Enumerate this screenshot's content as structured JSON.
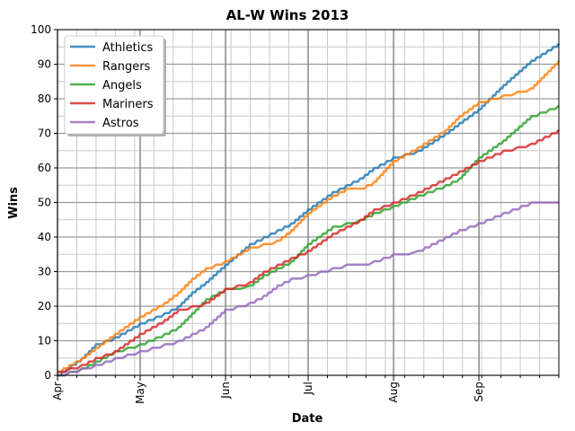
{
  "chart_data": {
    "type": "line",
    "title": "AL-W Wins 2013",
    "xlabel": "Date",
    "ylabel": "Wins",
    "xlim": [
      "2013-04-01",
      "2013-09-30"
    ],
    "ylim": [
      0,
      100
    ],
    "xticks": [
      "Apr",
      "May",
      "Jun",
      "Jul",
      "Aug",
      "Sep"
    ],
    "xtick_dates": [
      "2013-04-01",
      "2013-05-01",
      "2013-06-01",
      "2013-07-01",
      "2013-08-01",
      "2013-09-01"
    ],
    "yticks": [
      0,
      10,
      20,
      30,
      40,
      50,
      60,
      70,
      80,
      90,
      100
    ],
    "grid": true,
    "legend_position": "top-left",
    "series": [
      {
        "name": "Athletics",
        "color": "#1f77b4",
        "points": [
          [
            "2013-04-01",
            0
          ],
          [
            "2013-04-10",
            5
          ],
          [
            "2013-04-15",
            9
          ],
          [
            "2013-04-22",
            11
          ],
          [
            "2013-05-01",
            15
          ],
          [
            "2013-05-10",
            18
          ],
          [
            "2013-05-15",
            20
          ],
          [
            "2013-05-20",
            24
          ],
          [
            "2013-05-25",
            27
          ],
          [
            "2013-06-01",
            32
          ],
          [
            "2013-06-10",
            38
          ],
          [
            "2013-06-15",
            40
          ],
          [
            "2013-06-20",
            42
          ],
          [
            "2013-06-25",
            44
          ],
          [
            "2013-07-01",
            48
          ],
          [
            "2013-07-10",
            53
          ],
          [
            "2013-07-15",
            55
          ],
          [
            "2013-07-20",
            57
          ],
          [
            "2013-07-25",
            60
          ],
          [
            "2013-08-01",
            63
          ],
          [
            "2013-08-10",
            65
          ],
          [
            "2013-08-20",
            70
          ],
          [
            "2013-08-25",
            73
          ],
          [
            "2013-09-01",
            77
          ],
          [
            "2013-09-10",
            84
          ],
          [
            "2013-09-20",
            91
          ],
          [
            "2013-09-30",
            96
          ]
        ]
      },
      {
        "name": "Rangers",
        "color": "#ff7f0e",
        "points": [
          [
            "2013-04-01",
            1
          ],
          [
            "2013-04-10",
            5
          ],
          [
            "2013-04-15",
            8
          ],
          [
            "2013-04-22",
            12
          ],
          [
            "2013-05-01",
            17
          ],
          [
            "2013-05-10",
            21
          ],
          [
            "2013-05-15",
            24
          ],
          [
            "2013-05-20",
            28
          ],
          [
            "2013-05-25",
            31
          ],
          [
            "2013-06-01",
            33
          ],
          [
            "2013-06-10",
            37
          ],
          [
            "2013-06-15",
            38
          ],
          [
            "2013-06-20",
            39
          ],
          [
            "2013-06-25",
            42
          ],
          [
            "2013-07-01",
            47
          ],
          [
            "2013-07-10",
            52
          ],
          [
            "2013-07-15",
            54
          ],
          [
            "2013-07-20",
            54
          ],
          [
            "2013-07-25",
            56
          ],
          [
            "2013-08-01",
            62
          ],
          [
            "2013-08-10",
            66
          ],
          [
            "2013-08-20",
            71
          ],
          [
            "2013-08-25",
            75
          ],
          [
            "2013-09-01",
            79
          ],
          [
            "2013-09-10",
            81
          ],
          [
            "2013-09-20",
            83
          ],
          [
            "2013-09-30",
            91
          ]
        ]
      },
      {
        "name": "Angels",
        "color": "#2ca02c",
        "points": [
          [
            "2013-04-01",
            0
          ],
          [
            "2013-04-10",
            2
          ],
          [
            "2013-04-15",
            4
          ],
          [
            "2013-04-22",
            7
          ],
          [
            "2013-05-01",
            9
          ],
          [
            "2013-05-10",
            12
          ],
          [
            "2013-05-15",
            14
          ],
          [
            "2013-05-20",
            18
          ],
          [
            "2013-05-25",
            22
          ],
          [
            "2013-06-01",
            25
          ],
          [
            "2013-06-10",
            26
          ],
          [
            "2013-06-15",
            29
          ],
          [
            "2013-06-20",
            31
          ],
          [
            "2013-06-25",
            33
          ],
          [
            "2013-07-01",
            38
          ],
          [
            "2013-07-10",
            43
          ],
          [
            "2013-07-15",
            44
          ],
          [
            "2013-07-20",
            45
          ],
          [
            "2013-07-25",
            47
          ],
          [
            "2013-08-01",
            49
          ],
          [
            "2013-08-10",
            52
          ],
          [
            "2013-08-20",
            55
          ],
          [
            "2013-08-25",
            57
          ],
          [
            "2013-09-01",
            63
          ],
          [
            "2013-09-10",
            68
          ],
          [
            "2013-09-20",
            75
          ],
          [
            "2013-09-30",
            78
          ]
        ]
      },
      {
        "name": "Mariners",
        "color": "#d62728",
        "points": [
          [
            "2013-04-01",
            1
          ],
          [
            "2013-04-10",
            3
          ],
          [
            "2013-04-15",
            5
          ],
          [
            "2013-04-22",
            7
          ],
          [
            "2013-05-01",
            12
          ],
          [
            "2013-05-10",
            16
          ],
          [
            "2013-05-15",
            19
          ],
          [
            "2013-05-20",
            20
          ],
          [
            "2013-05-25",
            21
          ],
          [
            "2013-06-01",
            25
          ],
          [
            "2013-06-10",
            27
          ],
          [
            "2013-06-15",
            30
          ],
          [
            "2013-06-20",
            32
          ],
          [
            "2013-06-25",
            34
          ],
          [
            "2013-07-01",
            36
          ],
          [
            "2013-07-10",
            41
          ],
          [
            "2013-07-15",
            43
          ],
          [
            "2013-07-20",
            45
          ],
          [
            "2013-07-25",
            48
          ],
          [
            "2013-08-01",
            50
          ],
          [
            "2013-08-10",
            53
          ],
          [
            "2013-08-20",
            57
          ],
          [
            "2013-08-25",
            59
          ],
          [
            "2013-09-01",
            62
          ],
          [
            "2013-09-10",
            65
          ],
          [
            "2013-09-20",
            67
          ],
          [
            "2013-09-30",
            71
          ]
        ]
      },
      {
        "name": "Astros",
        "color": "#9467bd",
        "points": [
          [
            "2013-04-01",
            0
          ],
          [
            "2013-04-10",
            2
          ],
          [
            "2013-04-15",
            3
          ],
          [
            "2013-04-22",
            5
          ],
          [
            "2013-05-01",
            7
          ],
          [
            "2013-05-10",
            9
          ],
          [
            "2013-05-15",
            10
          ],
          [
            "2013-05-20",
            12
          ],
          [
            "2013-05-25",
            14
          ],
          [
            "2013-06-01",
            19
          ],
          [
            "2013-06-10",
            21
          ],
          [
            "2013-06-15",
            23
          ],
          [
            "2013-06-20",
            26
          ],
          [
            "2013-06-25",
            28
          ],
          [
            "2013-07-01",
            29
          ],
          [
            "2013-07-10",
            31
          ],
          [
            "2013-07-15",
            32
          ],
          [
            "2013-07-20",
            32
          ],
          [
            "2013-07-25",
            33
          ],
          [
            "2013-08-01",
            35
          ],
          [
            "2013-08-10",
            36
          ],
          [
            "2013-08-20",
            40
          ],
          [
            "2013-08-25",
            42
          ],
          [
            "2013-09-01",
            44
          ],
          [
            "2013-09-10",
            47
          ],
          [
            "2013-09-20",
            50
          ],
          [
            "2013-09-30",
            50
          ]
        ]
      }
    ]
  }
}
